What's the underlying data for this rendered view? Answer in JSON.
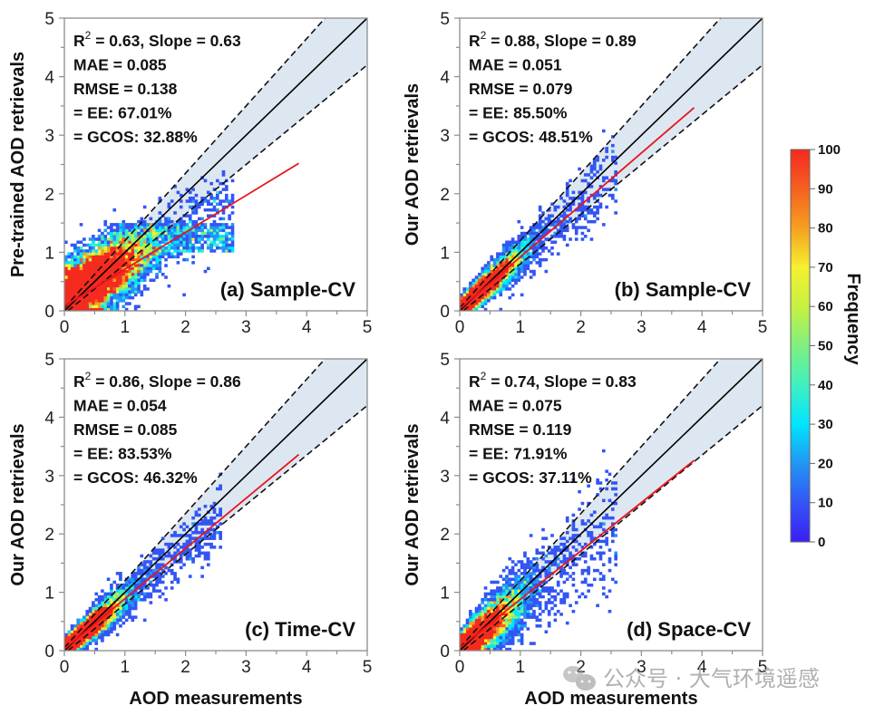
{
  "chart_data": [
    {
      "type": "heatmap",
      "id": "a",
      "panel_label": "(a) Sample-CV",
      "xlabel": "",
      "ylabel": "Pre-trained AOD retrievals",
      "xlim": [
        0,
        5
      ],
      "ylim": [
        0,
        5
      ],
      "xticks": [
        "0",
        "1",
        "2",
        "3",
        "4",
        "5"
      ],
      "yticks": [
        "0",
        "1",
        "2",
        "3",
        "4",
        "5"
      ],
      "stats": {
        "r2_label": "R",
        "r2_sup": "2",
        "r2_rest": " = 0.63, Slope = 0.63",
        "mae": "MAE = 0.085",
        "rmse": "RMSE = 0.138",
        "ee": "= EE: 67.01%",
        "gcos": "= GCOS: 32.88%"
      },
      "r2": 0.63,
      "slope": 0.63,
      "mae": 0.085,
      "rmse": 0.138,
      "ee_pct": 67.01,
      "gcos_pct": 32.88,
      "fit_line": {
        "x": [
          0,
          3.87
        ],
        "y": [
          0.08,
          2.52
        ]
      },
      "one_to_one": {
        "x": [
          0,
          5
        ],
        "y": [
          0,
          5
        ]
      },
      "ee_envelope": {
        "upper": "y = 1.15x + 0.05",
        "lower": "y = 0.85x - 0.05"
      },
      "scatter_shape": "saturated"
    },
    {
      "type": "heatmap",
      "id": "b",
      "panel_label": "(b) Sample-CV",
      "xlabel": "",
      "ylabel": "Our AOD retrievals",
      "xlim": [
        0,
        5
      ],
      "ylim": [
        0,
        5
      ],
      "xticks": [
        "0",
        "1",
        "2",
        "3",
        "4",
        "5"
      ],
      "yticks": [
        "0",
        "1",
        "2",
        "3",
        "4",
        "5"
      ],
      "stats": {
        "r2_label": "R",
        "r2_sup": "2",
        "r2_rest": " = 0.88, Slope = 0.89",
        "mae": "MAE = 0.051",
        "rmse": "RMSE = 0.079",
        "ee": "= EE: 85.50%",
        "gcos": "= GCOS: 48.51%"
      },
      "r2": 0.88,
      "slope": 0.89,
      "mae": 0.051,
      "rmse": 0.079,
      "ee_pct": 85.5,
      "gcos_pct": 48.51,
      "fit_line": {
        "x": [
          0,
          3.87
        ],
        "y": [
          0.03,
          3.47
        ]
      },
      "one_to_one": {
        "x": [
          0,
          5
        ],
        "y": [
          0,
          5
        ]
      },
      "ee_envelope": {
        "upper": "y = 1.15x + 0.05",
        "lower": "y = 0.85x - 0.05"
      },
      "scatter_shape": "tight"
    },
    {
      "type": "heatmap",
      "id": "c",
      "panel_label": "(c) Time-CV",
      "xlabel": "AOD measurements",
      "ylabel": "Our AOD retrievals",
      "xlim": [
        0,
        5
      ],
      "ylim": [
        0,
        5
      ],
      "xticks": [
        "0",
        "1",
        "2",
        "3",
        "4",
        "5"
      ],
      "yticks": [
        "0",
        "1",
        "2",
        "3",
        "4",
        "5"
      ],
      "stats": {
        "r2_label": "R",
        "r2_sup": "2",
        "r2_rest": " = 0.86, Slope = 0.86",
        "mae": "MAE = 0.054",
        "rmse": "RMSE = 0.085",
        "ee": "= EE: 83.53%",
        "gcos": "= GCOS: 46.32%"
      },
      "r2": 0.86,
      "slope": 0.86,
      "mae": 0.054,
      "rmse": 0.085,
      "ee_pct": 83.53,
      "gcos_pct": 46.32,
      "fit_line": {
        "x": [
          0,
          3.87
        ],
        "y": [
          0.03,
          3.36
        ]
      },
      "one_to_one": {
        "x": [
          0,
          5
        ],
        "y": [
          0,
          5
        ]
      },
      "ee_envelope": {
        "upper": "y = 1.15x + 0.05",
        "lower": "y = 0.85x - 0.05"
      },
      "scatter_shape": "tight"
    },
    {
      "type": "heatmap",
      "id": "d",
      "panel_label": "(d) Space-CV",
      "xlabel": "AOD measurements",
      "ylabel": "Our AOD retrievals",
      "xlim": [
        0,
        5
      ],
      "ylim": [
        0,
        5
      ],
      "xticks": [
        "0",
        "1",
        "2",
        "3",
        "4",
        "5"
      ],
      "yticks": [
        "0",
        "1",
        "2",
        "3",
        "4",
        "5"
      ],
      "stats": {
        "r2_label": "R",
        "r2_sup": "2",
        "r2_rest": " = 0.74, Slope = 0.83",
        "mae": "MAE = 0.075",
        "rmse": "RMSE = 0.119",
        "ee": "= EE: 71.91%",
        "gcos": "= GCOS: 37.11%"
      },
      "r2": 0.74,
      "slope": 0.83,
      "mae": 0.075,
      "rmse": 0.119,
      "ee_pct": 71.91,
      "gcos_pct": 37.11,
      "fit_line": {
        "x": [
          0,
          3.87
        ],
        "y": [
          0.05,
          3.26
        ]
      },
      "one_to_one": {
        "x": [
          0,
          5
        ],
        "y": [
          0,
          5
        ]
      },
      "ee_envelope": {
        "upper": "y = 1.15x + 0.05",
        "lower": "y = 0.85x - 0.05"
      },
      "scatter_shape": "wide"
    }
  ],
  "colorbar": {
    "title": "Frequency",
    "range": [
      0,
      100
    ],
    "ticks": [
      "0",
      "10",
      "20",
      "30",
      "40",
      "50",
      "60",
      "70",
      "80",
      "90",
      "100"
    ],
    "colormap": [
      "#3b1ef5",
      "#3355f5",
      "#2196f3",
      "#00e5ff",
      "#40f0c0",
      "#7ff080",
      "#c8f040",
      "#f5f030",
      "#f5a020",
      "#f56020",
      "#f52a1e"
    ]
  },
  "colors": {
    "envelope_fill": "#dde7f1",
    "fit_line": "#e8141c",
    "one_to_one": "#000000",
    "axis": "#8c8c8c"
  },
  "watermark": {
    "text": "公众号 · 大气环境遥感",
    "icon": "wechat-icon"
  }
}
